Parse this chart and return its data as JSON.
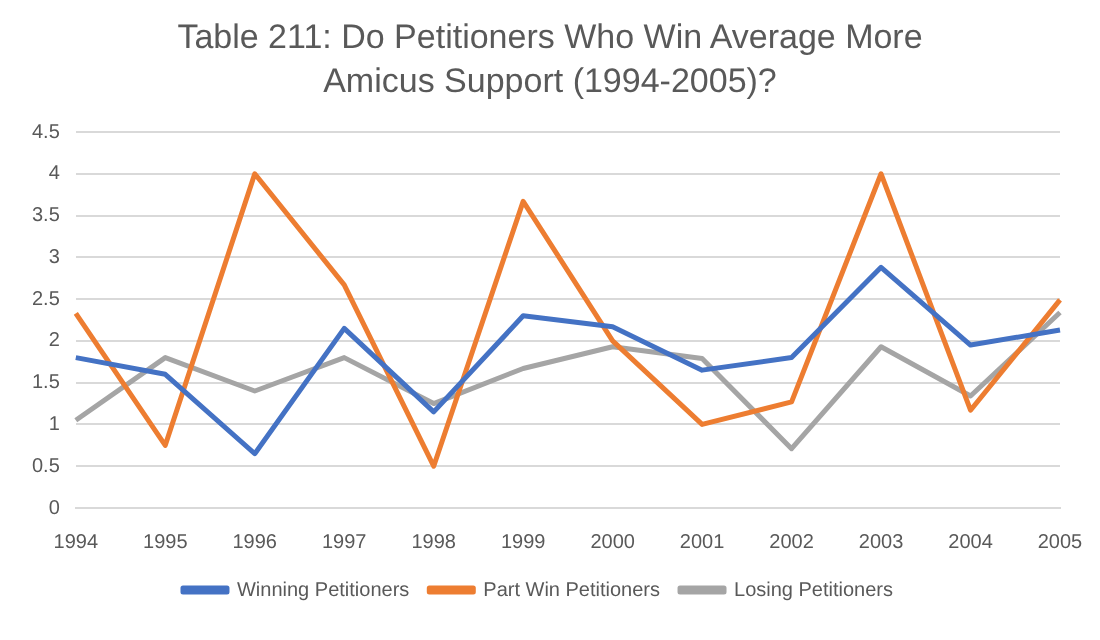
{
  "chart_data": {
    "type": "line",
    "title": "Table 211: Do Petitioners Who Win Average More Amicus Support (1994-2005)?",
    "categories": [
      "1994",
      "1995",
      "1996",
      "1997",
      "1998",
      "1999",
      "2000",
      "2001",
      "2002",
      "2003",
      "2004",
      "2005"
    ],
    "series": [
      {
        "name": "Winning Petitioners",
        "color": "#4472c4",
        "values": [
          1.8,
          1.6,
          0.65,
          2.15,
          1.15,
          2.3,
          2.17,
          1.65,
          1.8,
          2.88,
          1.95,
          2.13
        ]
      },
      {
        "name": "Part Win Petitioners",
        "color": "#ed7d31",
        "values": [
          2.33,
          0.75,
          4.0,
          2.67,
          0.5,
          3.67,
          2.0,
          1.0,
          1.27,
          4.0,
          1.17,
          2.49
        ]
      },
      {
        "name": "Losing Petitioners",
        "color": "#a5a5a5",
        "values": [
          1.05,
          1.8,
          1.4,
          1.8,
          1.25,
          1.67,
          1.93,
          1.79,
          0.71,
          1.93,
          1.34,
          2.34
        ]
      }
    ],
    "ylim": [
      0,
      4.5
    ],
    "yticks": [
      0,
      0.5,
      1,
      1.5,
      2,
      2.5,
      3,
      3.5,
      4,
      4.5
    ],
    "grid": "y",
    "legend": "bottom",
    "marker": "none"
  }
}
